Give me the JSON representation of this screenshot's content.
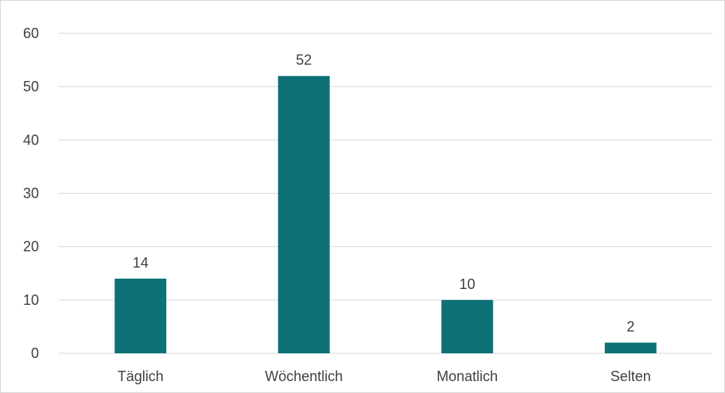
{
  "chart_data": {
    "type": "bar",
    "categories": [
      "Täglich",
      "Wöchentlich",
      "Monatlich",
      "Selten"
    ],
    "values": [
      14,
      52,
      10,
      2
    ],
    "data_labels": [
      "14",
      "52",
      "10",
      "2"
    ],
    "ylim": [
      0,
      60
    ],
    "yticks": [
      0,
      10,
      20,
      30,
      40,
      50,
      60
    ],
    "ytick_labels": [
      "0",
      "10",
      "20",
      "30",
      "40",
      "50",
      "60"
    ],
    "grid": true,
    "legend": "none",
    "title": "",
    "xlabel": "",
    "ylabel": "",
    "colors": {
      "bar": "#0e7178",
      "grid": "#d9d9d9",
      "text": "#404040"
    }
  }
}
